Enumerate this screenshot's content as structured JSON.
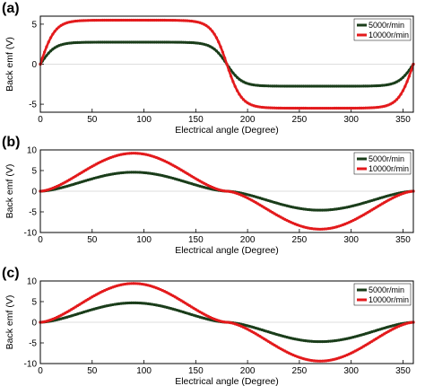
{
  "chart_data": [
    {
      "type": "line",
      "panel_label": "(a)",
      "xlabel": "Electrical angle (Degree)",
      "ylabel": "Back emf (V)",
      "xlim": [
        0,
        360
      ],
      "ylim": [
        -6,
        6
      ],
      "xticks": [
        0,
        50,
        100,
        150,
        200,
        250,
        300,
        350
      ],
      "yticks": [
        -5,
        0,
        5
      ],
      "legend": {
        "position": "top-right"
      },
      "grid": false,
      "series": [
        {
          "name": "5000r/min",
          "color": "#1a3d1a",
          "shape": "trapezoid",
          "amplitude": 2.75,
          "x": [
            0,
            10,
            20,
            30,
            40,
            50,
            60,
            90,
            120,
            150,
            160,
            170,
            180,
            190,
            200,
            210,
            220,
            240,
            270,
            300,
            330,
            340,
            350,
            360
          ],
          "y": [
            0,
            1.8,
            2.4,
            2.65,
            2.72,
            2.75,
            2.75,
            2.75,
            2.75,
            2.7,
            2.4,
            1.6,
            0,
            -1.6,
            -2.4,
            -2.65,
            -2.72,
            -2.75,
            -2.75,
            -2.75,
            -2.7,
            -2.4,
            -1.6,
            0
          ]
        },
        {
          "name": "10000r/min",
          "color": "#e31a1c",
          "shape": "trapezoid",
          "amplitude": 5.5,
          "x": [
            0,
            10,
            20,
            30,
            40,
            50,
            60,
            90,
            120,
            150,
            160,
            170,
            180,
            190,
            200,
            210,
            220,
            240,
            270,
            300,
            330,
            340,
            350,
            360
          ],
          "y": [
            0,
            3.6,
            4.8,
            5.3,
            5.45,
            5.5,
            5.5,
            5.5,
            5.5,
            5.4,
            4.8,
            3.2,
            0,
            -3.2,
            -4.8,
            -5.3,
            -5.45,
            -5.5,
            -5.5,
            -5.5,
            -5.4,
            -4.8,
            -3.2,
            0
          ]
        }
      ]
    },
    {
      "type": "line",
      "panel_label": "(b)",
      "xlabel": "Electrical angle (Degree)",
      "ylabel": "Back emf (V)",
      "xlim": [
        0,
        360
      ],
      "ylim": [
        -10,
        10
      ],
      "xticks": [
        0,
        50,
        100,
        150,
        200,
        250,
        300,
        350
      ],
      "yticks": [
        -10,
        -5,
        0,
        5,
        10
      ],
      "legend": {
        "position": "top-right"
      },
      "grid": false,
      "series": [
        {
          "name": "5000r/min",
          "color": "#1a3d1a",
          "shape": "smooth",
          "amplitude": 4.6,
          "x": [
            0,
            30,
            60,
            90,
            120,
            150,
            180,
            210,
            240,
            270,
            300,
            330,
            360
          ],
          "y": [
            0,
            1.0,
            3.2,
            4.6,
            3.2,
            1.0,
            0,
            -1.0,
            -3.2,
            -4.6,
            -3.2,
            -1.0,
            0
          ]
        },
        {
          "name": "10000r/min",
          "color": "#e31a1c",
          "shape": "smooth",
          "amplitude": 9.2,
          "x": [
            0,
            30,
            60,
            90,
            120,
            150,
            180,
            210,
            240,
            270,
            300,
            330,
            360
          ],
          "y": [
            0,
            2.0,
            6.4,
            9.2,
            6.4,
            2.0,
            0,
            -2.0,
            -6.4,
            -9.2,
            -6.4,
            -2.0,
            0
          ]
        }
      ]
    },
    {
      "type": "line",
      "panel_label": "(c)",
      "xlabel": "Electrical angle (Degree)",
      "ylabel": "Back emf (V)",
      "xlim": [
        0,
        360
      ],
      "ylim": [
        -10,
        10
      ],
      "xticks": [
        0,
        50,
        100,
        150,
        200,
        250,
        300,
        350
      ],
      "yticks": [
        -10,
        -5,
        0,
        5,
        10
      ],
      "legend": {
        "position": "top-right"
      },
      "grid": false,
      "series": [
        {
          "name": "5000r/min",
          "color": "#1a3d1a",
          "shape": "smooth",
          "amplitude": 4.7,
          "x": [
            0,
            30,
            60,
            90,
            120,
            150,
            180,
            210,
            240,
            270,
            300,
            330,
            360
          ],
          "y": [
            0,
            1.0,
            3.3,
            4.7,
            3.3,
            1.0,
            0,
            -1.0,
            -3.3,
            -4.7,
            -3.3,
            -1.0,
            0
          ]
        },
        {
          "name": "10000r/min",
          "color": "#e31a1c",
          "shape": "smooth",
          "amplitude": 9.4,
          "x": [
            0,
            30,
            60,
            90,
            120,
            150,
            180,
            210,
            240,
            270,
            300,
            330,
            360
          ],
          "y": [
            0,
            2.0,
            6.6,
            9.4,
            6.6,
            2.0,
            0,
            -2.0,
            -6.6,
            -9.4,
            -6.6,
            -2.0,
            0
          ]
        }
      ]
    }
  ]
}
